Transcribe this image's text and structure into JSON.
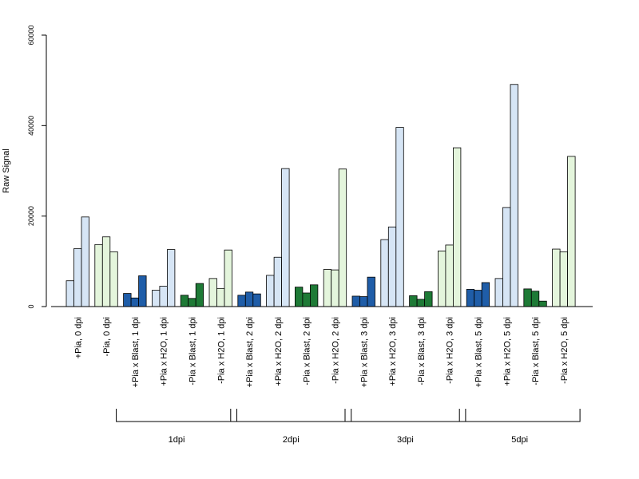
{
  "chart_data": {
    "type": "bar",
    "ylabel": "Raw Signal",
    "ylim": [
      0,
      60000
    ],
    "yticks": [
      0,
      20000,
      40000,
      60000
    ],
    "colors": {
      "light_blue": "#d6e5f5",
      "dark_blue": "#1f5da8",
      "light_green": "#e4f5dc",
      "dark_green": "#1e7a36"
    },
    "categories": [
      {
        "label": "+Pia, 0 dpi",
        "color": "light_blue",
        "values": [
          5700,
          12800,
          19800
        ]
      },
      {
        "label": "-Pia, 0 dpi",
        "color": "light_green",
        "values": [
          13700,
          15400,
          12100
        ]
      },
      {
        "label": "+Pia x Blast, 1 dpi",
        "color": "dark_blue",
        "values": [
          2900,
          1900,
          6800
        ]
      },
      {
        "label": "+Pia x H2O, 1 dpi",
        "color": "light_blue",
        "values": [
          3600,
          4500,
          12600
        ]
      },
      {
        "label": "-Pia x Blast, 1 dpi",
        "color": "dark_green",
        "values": [
          2500,
          1800,
          5100
        ]
      },
      {
        "label": "-Pia x H2O, 1 dpi",
        "color": "light_green",
        "values": [
          6200,
          4000,
          12500
        ]
      },
      {
        "label": "+Pia x Blast, 2 dpi",
        "color": "dark_blue",
        "values": [
          2500,
          3200,
          2800
        ]
      },
      {
        "label": "+Pia x H2O, 2 dpi",
        "color": "light_blue",
        "values": [
          6900,
          10900,
          30500
        ]
      },
      {
        "label": "-Pia x Blast, 2 dpi",
        "color": "dark_green",
        "values": [
          4300,
          3000,
          4800
        ]
      },
      {
        "label": "-Pia x H2O, 2 dpi",
        "color": "light_green",
        "values": [
          8200,
          8100,
          30400
        ]
      },
      {
        "label": "+Pia x Blast, 3 dpi",
        "color": "dark_blue",
        "values": [
          2300,
          2200,
          6500
        ]
      },
      {
        "label": "+Pia x H2O, 3 dpi",
        "color": "light_blue",
        "values": [
          14800,
          17600,
          39600
        ]
      },
      {
        "label": "-Pia x Blast, 3 dpi",
        "color": "dark_green",
        "values": [
          2400,
          1600,
          3300
        ]
      },
      {
        "label": "-Pia x H2O, 3 dpi",
        "color": "light_green",
        "values": [
          12300,
          13600,
          35100
        ]
      },
      {
        "label": "+Pia x Blast, 5 dpi",
        "color": "dark_blue",
        "values": [
          3800,
          3600,
          5300
        ]
      },
      {
        "label": "+Pia x H2O, 5 dpi",
        "color": "light_blue",
        "values": [
          6200,
          21900,
          49100
        ]
      },
      {
        "label": "-Pia x Blast, 5 dpi",
        "color": "dark_green",
        "values": [
          3900,
          3400,
          1200
        ]
      },
      {
        "label": "-Pia x H2O, 5 dpi",
        "color": "light_green",
        "values": [
          12700,
          12100,
          33200
        ]
      }
    ],
    "groups": [
      {
        "label": "1dpi",
        "first": 2,
        "last": 5
      },
      {
        "label": "2dpi",
        "first": 6,
        "last": 9
      },
      {
        "label": "3dpi",
        "first": 10,
        "last": 13
      },
      {
        "label": "5dpi",
        "first": 14,
        "last": 17
      }
    ],
    "grid": false,
    "legend": "none"
  }
}
